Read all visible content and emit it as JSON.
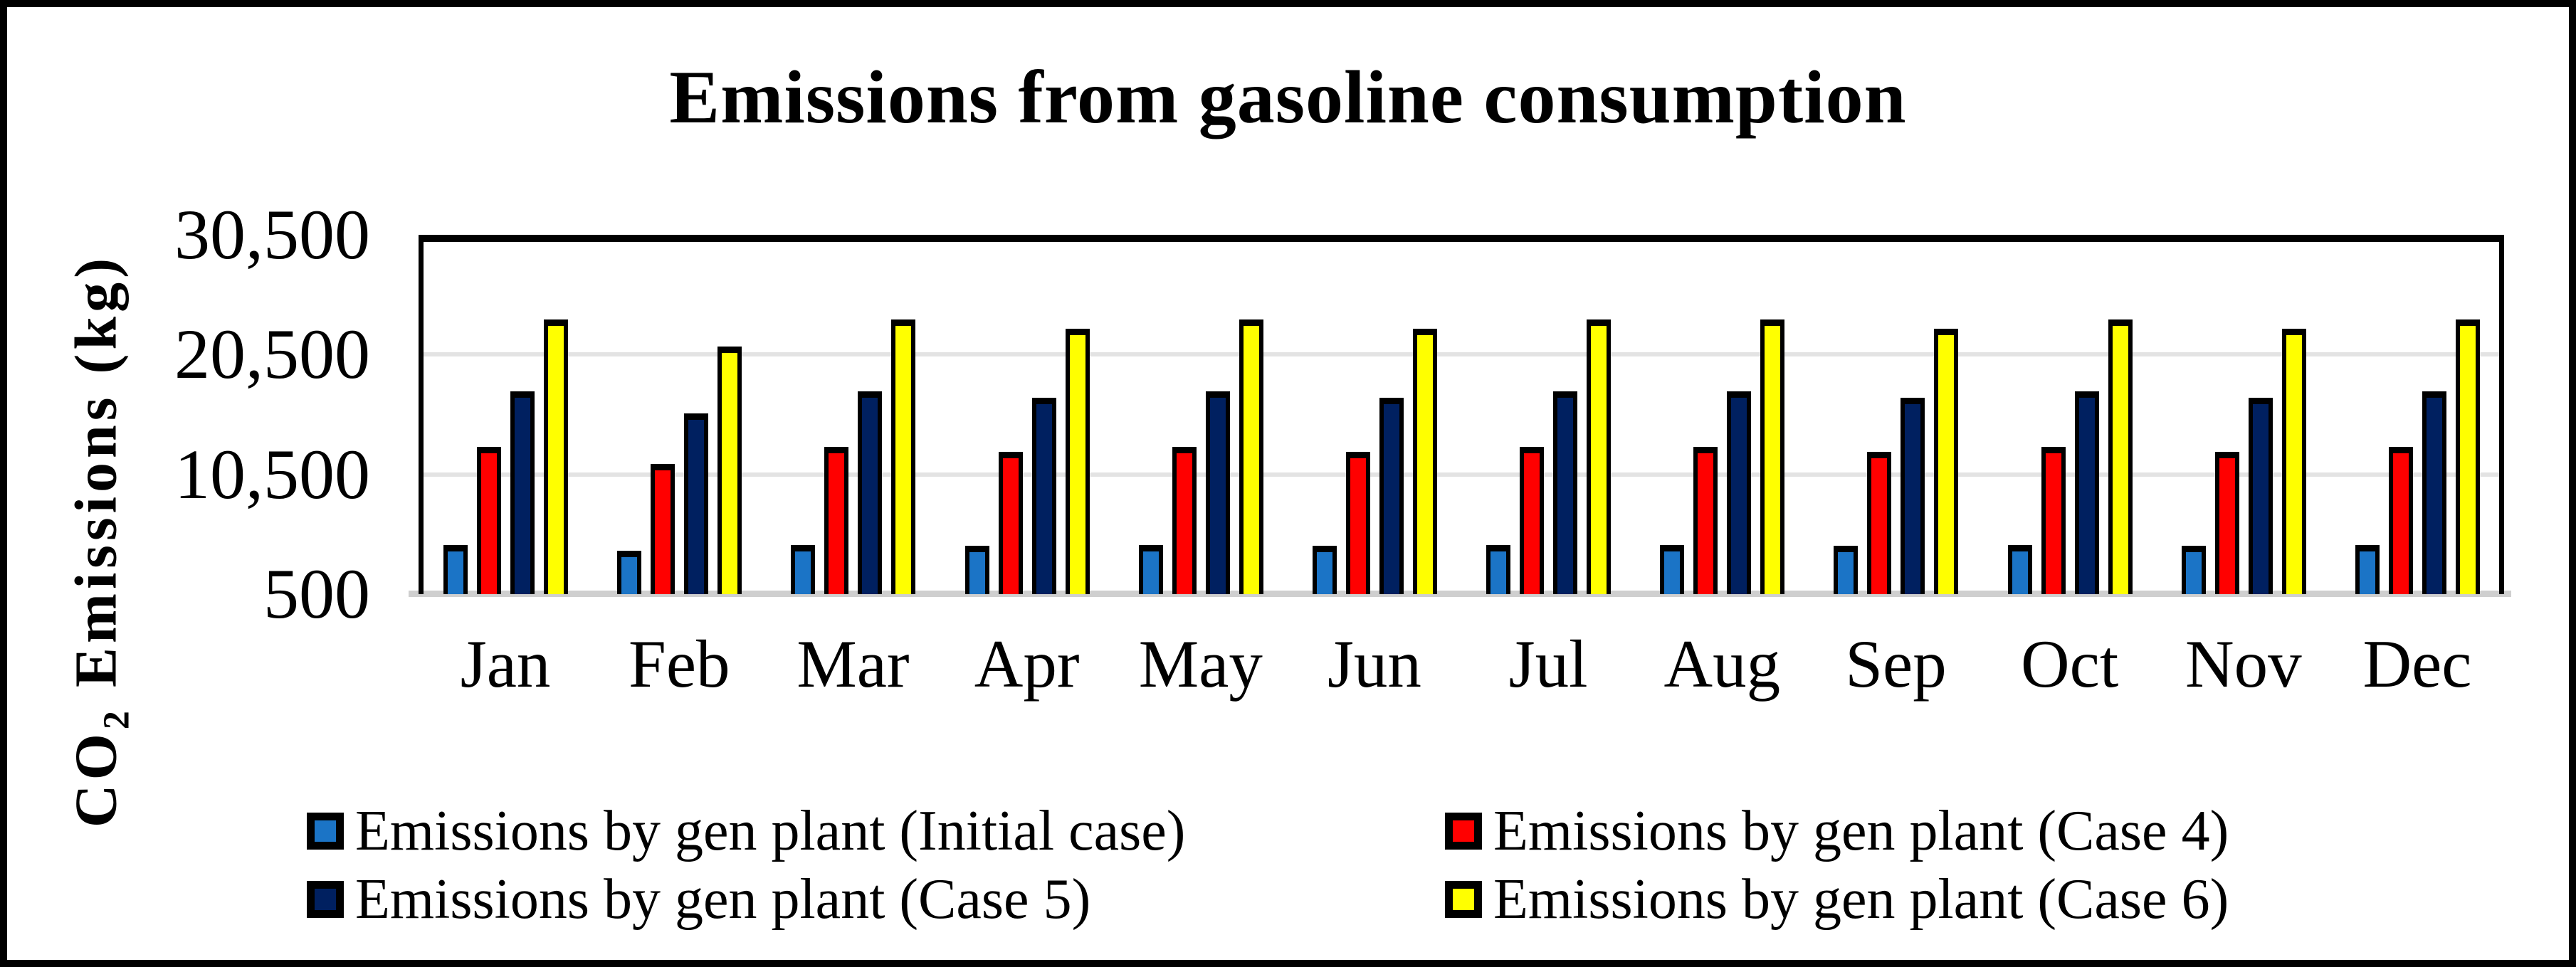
{
  "chart_data": {
    "type": "bar",
    "title": "Emissions from gasoline consumption",
    "categories": [
      "Jan",
      "Feb",
      "Mar",
      "Apr",
      "May",
      "Jun",
      "Jul",
      "Aug",
      "Sep",
      "Oct",
      "Nov",
      "Dec"
    ],
    "series": [
      {
        "name": "Emissions by gen plant (Initial case)",
        "color": "#1B74C6",
        "values": [
          4600,
          4100,
          4600,
          4550,
          4600,
          4550,
          4600,
          4600,
          4550,
          4600,
          4550,
          4600
        ]
      },
      {
        "name": "Emissions by gen plant (Case 4)",
        "color": "#FF0000",
        "values": [
          12800,
          11350,
          12800,
          12400,
          12800,
          12400,
          12800,
          12800,
          12400,
          12800,
          12400,
          12800
        ]
      },
      {
        "name": "Emissions by gen plant (Case 5)",
        "color": "#002060",
        "values": [
          17450,
          15600,
          17450,
          16900,
          17450,
          16900,
          17450,
          17450,
          16900,
          17450,
          16900,
          17450
        ]
      },
      {
        "name": "Emissions by gen plant (Case 6)",
        "color": "#FFFF00",
        "values": [
          23450,
          21200,
          23450,
          22650,
          23450,
          22650,
          23450,
          23450,
          22650,
          23450,
          22650,
          23450
        ]
      }
    ],
    "xlabel": "",
    "ylabel": "CO2 Emissions (kg)",
    "ylim": [
      500,
      30500
    ],
    "yticks": [
      {
        "label": "500",
        "value": 500
      },
      {
        "label": "10,500",
        "value": 10500
      },
      {
        "label": "20,500",
        "value": 20500
      },
      {
        "label": "30,500",
        "value": 30500
      }
    ],
    "grid": "horizontal",
    "legend_position": "bottom"
  },
  "y_axis_title": {
    "prefix": "CO",
    "sub": "2",
    "suffix": " Emissions (kg)"
  },
  "legend": {
    "items": [
      {
        "label": "Emissions by gen plant (Initial case)",
        "color": "#1B74C6"
      },
      {
        "label": "Emissions by gen plant (Case 4)",
        "color": "#FF0000"
      },
      {
        "label": "Emissions by gen plant (Case 5)",
        "color": "#002060"
      },
      {
        "label": "Emissions by gen plant (Case 6)",
        "color": "#FFFF00"
      }
    ]
  },
  "colors": {
    "grid": "#E3E3E3",
    "baseline": "#CFCFCF",
    "bar_border": "#000000",
    "frame": "#000000"
  }
}
